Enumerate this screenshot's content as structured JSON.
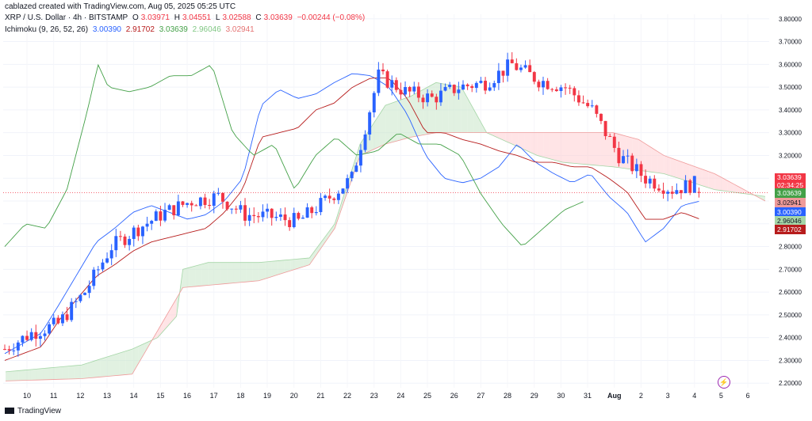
{
  "header": {
    "attribution": "cablazed created with TradingView.com, Aug 05, 2025 05:25 UTC",
    "symbol": "XRP / U.S. Dollar · 4h · BITSTAMP",
    "ohlc": {
      "o_label": "O",
      "o": "3.03971",
      "h_label": "H",
      "h": "3.04551",
      "l_label": "L",
      "l": "3.02588",
      "c_label": "C",
      "c": "3.03639",
      "change": "−0.00244 (−0.08%)"
    },
    "indicator": {
      "name": "Ichimoku (9, 26, 52, 26)",
      "conversion": "3.00390",
      "base": "2.91702",
      "lagging": "3.03639",
      "lead_a": "2.96046",
      "lead_b": "3.02941"
    }
  },
  "footer": {
    "brand": "TradingView"
  },
  "colors": {
    "up": "#2962ff",
    "down": "#f23645",
    "conversion": "#2962ff",
    "base": "#b71c1c",
    "lagging": "#43a047",
    "cloud_green": "#a5d6a7",
    "cloud_red": "#ef9a9a"
  },
  "chart_data": {
    "type": "candlestick",
    "title": "XRP / U.S. Dollar · 4h · BITSTAMP",
    "ylim": [
      2.18,
      3.82
    ],
    "y_ticks": [
      "3.80000",
      "3.70000",
      "3.60000",
      "3.50000",
      "3.40000",
      "3.30000",
      "3.20000",
      "3.10000",
      "3.00000",
      "2.90000",
      "2.80000",
      "2.70000",
      "2.60000",
      "2.50000",
      "2.40000",
      "2.30000",
      "2.20000"
    ],
    "x_ticks": [
      "10",
      "11",
      "12",
      "13",
      "14",
      "15",
      "16",
      "17",
      "18",
      "19",
      "20",
      "21",
      "22",
      "23",
      "24",
      "25",
      "26",
      "27",
      "28",
      "29",
      "30",
      "31",
      "Aug",
      "2",
      "3",
      "4",
      "5",
      "6"
    ],
    "price_labels": [
      {
        "value": "3.03639",
        "sub": "02:34:25",
        "color": "#f23645",
        "text": "#ffffff"
      },
      {
        "value": "3.03639",
        "color": "#43a047",
        "text": "#ffffff"
      },
      {
        "value": "3.02941",
        "color": "#ef9a9a",
        "text": "#131722"
      },
      {
        "value": "3.00390",
        "color": "#2962ff",
        "text": "#ffffff"
      },
      {
        "value": "2.96046",
        "color": "#a5d6a7",
        "text": "#131722"
      },
      {
        "value": "2.91702",
        "color": "#b71c1c",
        "text": "#ffffff"
      }
    ],
    "close_anchors": [
      [
        0,
        2.35
      ],
      [
        1,
        2.42
      ],
      [
        2,
        2.46
      ],
      [
        3,
        2.6
      ],
      [
        4,
        2.8
      ],
      [
        5,
        2.88
      ],
      [
        6,
        2.95
      ],
      [
        7,
        3.0
      ],
      [
        8,
        3.02
      ],
      [
        9,
        2.94
      ],
      [
        10,
        2.93
      ],
      [
        11,
        2.91
      ],
      [
        12,
        3.0
      ],
      [
        13,
        3.1
      ],
      [
        14,
        3.55
      ],
      [
        15,
        3.48
      ],
      [
        16,
        3.45
      ],
      [
        17,
        3.5
      ],
      [
        18,
        3.52
      ],
      [
        19,
        3.6
      ],
      [
        20,
        3.53
      ],
      [
        21,
        3.5
      ],
      [
        22,
        3.4
      ],
      [
        23,
        3.2
      ],
      [
        24,
        3.1
      ],
      [
        25,
        3.05
      ],
      [
        26,
        3.08
      ],
      [
        27,
        3.14
      ],
      [
        28,
        3.25
      ],
      [
        29,
        3.15
      ],
      [
        30,
        3.13
      ],
      [
        31,
        3.08
      ],
      [
        32,
        3.12
      ],
      [
        33,
        3.0
      ],
      [
        34,
        2.97
      ],
      [
        35,
        2.78
      ],
      [
        36,
        2.92
      ],
      [
        37,
        3.02
      ],
      [
        38,
        3.04
      ]
    ],
    "conversion_anchors": [
      [
        0,
        2.33
      ],
      [
        2,
        2.42
      ],
      [
        3,
        2.55
      ],
      [
        5,
        2.82
      ],
      [
        6,
        2.88
      ],
      [
        7,
        2.95
      ],
      [
        8,
        2.98
      ],
      [
        9,
        2.95
      ],
      [
        10,
        2.92
      ],
      [
        11,
        2.94
      ],
      [
        12,
        3.0
      ],
      [
        13,
        3.1
      ],
      [
        14,
        3.42
      ],
      [
        15,
        3.49
      ],
      [
        16,
        3.45
      ],
      [
        17,
        3.47
      ],
      [
        18,
        3.52
      ],
      [
        19,
        3.56
      ],
      [
        20,
        3.55
      ],
      [
        21,
        3.5
      ],
      [
        22,
        3.38
      ],
      [
        23,
        3.2
      ],
      [
        24,
        3.1
      ],
      [
        25,
        3.08
      ],
      [
        26,
        3.1
      ],
      [
        27,
        3.15
      ],
      [
        28,
        3.25
      ],
      [
        29,
        3.17
      ],
      [
        30,
        3.12
      ],
      [
        31,
        3.08
      ],
      [
        32,
        3.12
      ],
      [
        33,
        3.02
      ],
      [
        34,
        2.95
      ],
      [
        35,
        2.82
      ],
      [
        36,
        2.88
      ],
      [
        37,
        2.98
      ],
      [
        38,
        3.0
      ]
    ],
    "base_anchors": [
      [
        0,
        2.3
      ],
      [
        2,
        2.36
      ],
      [
        3,
        2.48
      ],
      [
        5,
        2.67
      ],
      [
        6,
        2.72
      ],
      [
        7,
        2.78
      ],
      [
        8,
        2.82
      ],
      [
        9,
        2.84
      ],
      [
        10,
        2.86
      ],
      [
        11,
        2.88
      ],
      [
        12,
        2.95
      ],
      [
        13,
        3.05
      ],
      [
        14,
        3.28
      ],
      [
        16,
        3.32
      ],
      [
        17,
        3.4
      ],
      [
        18,
        3.43
      ],
      [
        19,
        3.5
      ],
      [
        20,
        3.54
      ],
      [
        21,
        3.54
      ],
      [
        22,
        3.45
      ],
      [
        23,
        3.3
      ],
      [
        24,
        3.3
      ],
      [
        25,
        3.27
      ],
      [
        26,
        3.25
      ],
      [
        27,
        3.22
      ],
      [
        28,
        3.2
      ],
      [
        29,
        3.17
      ],
      [
        30,
        3.17
      ],
      [
        31,
        3.15
      ],
      [
        32,
        3.15
      ],
      [
        33,
        3.1
      ],
      [
        34,
        3.04
      ],
      [
        35,
        2.92
      ],
      [
        36,
        2.92
      ],
      [
        37,
        2.95
      ],
      [
        38,
        2.92
      ]
    ],
    "lagging_anchors": [
      [
        0,
        2.8
      ],
      [
        1,
        2.9
      ],
      [
        2,
        2.88
      ],
      [
        3,
        3.05
      ],
      [
        4,
        3.4
      ],
      [
        4.5,
        3.6
      ],
      [
        5,
        3.5
      ],
      [
        6,
        3.48
      ],
      [
        7,
        3.5
      ],
      [
        8,
        3.55
      ],
      [
        9,
        3.55
      ],
      [
        10,
        3.6
      ],
      [
        11,
        3.3
      ],
      [
        12,
        3.2
      ],
      [
        13,
        3.25
      ],
      [
        14,
        3.05
      ],
      [
        15,
        3.2
      ],
      [
        16,
        3.28
      ],
      [
        17,
        3.2
      ],
      [
        18,
        3.22
      ],
      [
        19,
        3.3
      ],
      [
        20,
        3.25
      ],
      [
        21,
        3.25
      ],
      [
        22,
        3.2
      ],
      [
        23,
        3.03
      ],
      [
        24,
        2.9
      ],
      [
        25,
        2.8
      ],
      [
        26,
        2.88
      ],
      [
        27,
        2.96
      ],
      [
        28,
        3.0
      ]
    ],
    "lead_a_anchors": [
      [
        0,
        2.25
      ],
      [
        3,
        2.28
      ],
      [
        5,
        2.35
      ],
      [
        6,
        2.4
      ],
      [
        6.8,
        2.5
      ],
      [
        7,
        2.7
      ],
      [
        8,
        2.73
      ],
      [
        10,
        2.73
      ],
      [
        12,
        2.75
      ],
      [
        13,
        2.9
      ],
      [
        14,
        3.25
      ],
      [
        15,
        3.42
      ],
      [
        16,
        3.46
      ],
      [
        17,
        3.52
      ],
      [
        18,
        3.5
      ],
      [
        19,
        3.3
      ],
      [
        20,
        3.25
      ],
      [
        21,
        3.2
      ],
      [
        22,
        3.17
      ],
      [
        24,
        3.15
      ],
      [
        26,
        3.12
      ],
      [
        28,
        3.05
      ],
      [
        30,
        3.02
      ]
    ],
    "lead_b_anchors": [
      [
        0,
        2.21
      ],
      [
        3,
        2.22
      ],
      [
        5,
        2.24
      ],
      [
        7,
        2.62
      ],
      [
        8,
        2.63
      ],
      [
        10,
        2.65
      ],
      [
        12,
        2.72
      ],
      [
        13,
        2.88
      ],
      [
        14,
        3.2
      ],
      [
        15,
        3.25
      ],
      [
        16,
        3.28
      ],
      [
        17,
        3.3
      ],
      [
        18,
        3.3
      ],
      [
        19,
        3.3
      ],
      [
        20,
        3.3
      ],
      [
        21,
        3.3
      ],
      [
        22,
        3.3
      ],
      [
        23,
        3.3
      ],
      [
        24,
        3.3
      ],
      [
        25,
        3.27
      ],
      [
        26,
        3.2
      ],
      [
        28,
        3.12
      ],
      [
        30,
        3.0
      ]
    ]
  }
}
